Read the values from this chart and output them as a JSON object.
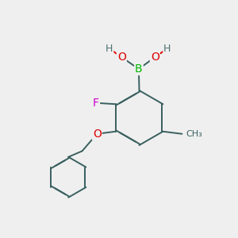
{
  "background_color": "#efefef",
  "bond_color": "#3a6060",
  "atom_colors": {
    "B": "#00bb00",
    "O": "#dd0000",
    "F": "#cc00cc",
    "H": "#507070",
    "C": "#3a6060"
  },
  "bond_width": 1.4,
  "double_sep": 0.1,
  "figsize": [
    3.0,
    3.0
  ],
  "dpi": 100
}
